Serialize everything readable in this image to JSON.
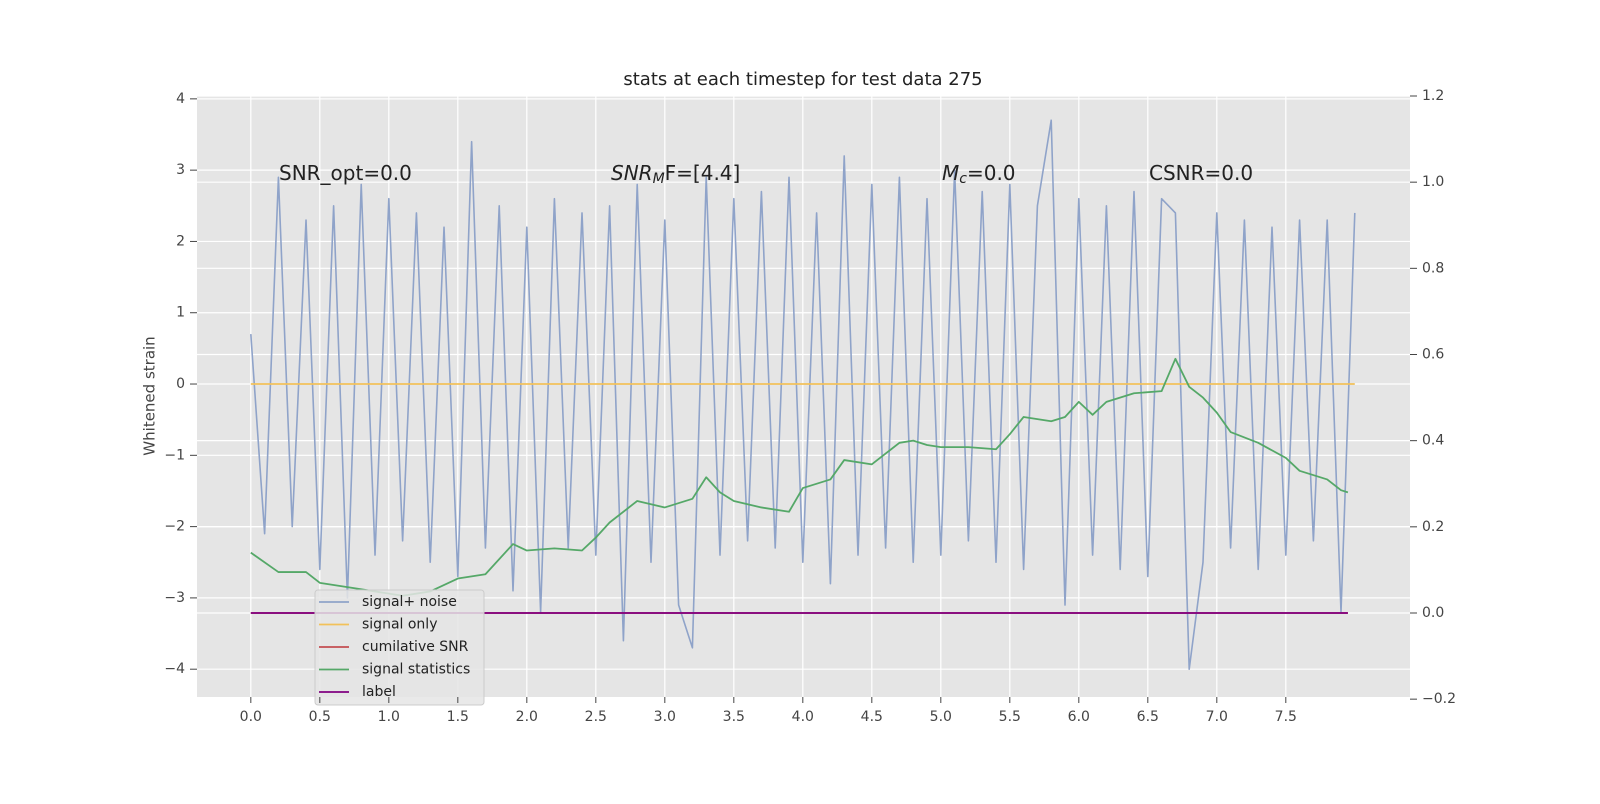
{
  "chart_data": {
    "type": "line",
    "title": "stats at each timestep for test data 275",
    "y_label": "Whitened strain",
    "annotations": [
      {
        "main": "SNR_opt=0.0"
      },
      {
        "main": "SNR",
        "sub": "M",
        "rest": "F=[4.4]"
      },
      {
        "main": "M",
        "sub": "c",
        "rest": "=0.0"
      },
      {
        "main": "CSNR=0.0"
      }
    ],
    "xlim": [
      -0.39,
      8.4
    ],
    "ylim": [
      -4.39,
      4.04
    ],
    "y2lim": [
      -0.195,
      1.2
    ],
    "xticks": [
      {
        "value": 0,
        "label": "0.0"
      },
      {
        "value": 0.5,
        "label": "0.5"
      },
      {
        "value": 1,
        "label": "1.0"
      },
      {
        "value": 1.5,
        "label": "1.5"
      },
      {
        "value": 2,
        "label": "2.0"
      },
      {
        "value": 2.5,
        "label": "2.5"
      },
      {
        "value": 3,
        "label": "3.0"
      },
      {
        "value": 3.5,
        "label": "3.5"
      },
      {
        "value": 4,
        "label": "4.0"
      },
      {
        "value": 4.5,
        "label": "4.5"
      },
      {
        "value": 5,
        "label": "5.0"
      },
      {
        "value": 5.5,
        "label": "5.5"
      },
      {
        "value": 6,
        "label": "6.0"
      },
      {
        "value": 6.5,
        "label": "6.5"
      },
      {
        "value": 7,
        "label": "7.0"
      },
      {
        "value": 7.5,
        "label": "7.5"
      }
    ],
    "yticks": [
      {
        "value": -4,
        "label": "−4"
      },
      {
        "value": -3,
        "label": "−3"
      },
      {
        "value": -2,
        "label": "−2"
      },
      {
        "value": -1,
        "label": "−1"
      },
      0,
      1,
      2,
      3,
      4
    ],
    "y2ticks": [
      {
        "value": -0.2,
        "label": "−0.2"
      },
      {
        "value": 0,
        "label": "0.0"
      },
      {
        "value": 0.2,
        "label": "0.2"
      },
      {
        "value": 0.4,
        "label": "0.4"
      },
      {
        "value": 0.6,
        "label": "0.6"
      },
      {
        "value": 0.8,
        "label": "0.8"
      },
      {
        "value": 1.0,
        "label": "1.0"
      },
      {
        "value": 1.2,
        "label": "1.2"
      }
    ],
    "grid": true,
    "legend": "lower left",
    "series": [
      {
        "name": "signal+ noise",
        "color": "#8fa3c9",
        "x": [
          0,
          0.1,
          0.2,
          0.3,
          0.4,
          0.5,
          0.6,
          0.7,
          0.8,
          0.9,
          1,
          1.1,
          1.2,
          1.3,
          1.4,
          1.5,
          1.6,
          1.7,
          1.8,
          1.9,
          2,
          2.1,
          2.2,
          2.3,
          2.4,
          2.5,
          2.6,
          2.7,
          2.8,
          2.9,
          3,
          3.1,
          3.2,
          3.3,
          3.4,
          3.5,
          3.6,
          3.7,
          3.8,
          3.9,
          4,
          4.1,
          4.2,
          4.3,
          4.4,
          4.5,
          4.6,
          4.7,
          4.8,
          4.9,
          5,
          5.1,
          5.2,
          5.3,
          5.4,
          5.5,
          5.6,
          5.7,
          5.8,
          5.9,
          6,
          6.1,
          6.2,
          6.3,
          6.4,
          6.5,
          6.6,
          6.7,
          6.8,
          6.9,
          7,
          7.1,
          7.2,
          7.3,
          7.4,
          7.5,
          7.6,
          7.7,
          7.8,
          7.9,
          8
        ],
        "values": [
          0.7,
          -2.1,
          2.9,
          -2.0,
          2.3,
          -2.6,
          2.5,
          -3.0,
          2.8,
          -2.4,
          2.6,
          -2.2,
          2.4,
          -2.5,
          2.2,
          -2.7,
          3.4,
          -2.3,
          2.5,
          -2.9,
          2.2,
          -3.2,
          2.6,
          -2.3,
          2.4,
          -2.4,
          2.5,
          -3.6,
          2.8,
          -2.5,
          2.3,
          -3.1,
          -3.7,
          2.9,
          -2.4,
          2.6,
          -2.2,
          2.7,
          -2.3,
          2.9,
          -2.5,
          2.4,
          -2.8,
          3.2,
          -2.4,
          2.8,
          -2.3,
          2.9,
          -2.5,
          2.6,
          -2.4,
          3.0,
          -2.2,
          2.7,
          -2.5,
          2.8,
          -2.6,
          2.5,
          3.7,
          -3.1,
          2.6,
          -2.4,
          2.5,
          -2.6,
          2.7,
          -2.7,
          2.6,
          2.4,
          -4.0,
          -2.5,
          2.4,
          -2.3,
          2.3,
          -2.6,
          2.2,
          -2.4,
          2.3,
          -2.2,
          2.3,
          -3.2,
          2.4
        ]
      },
      {
        "name": "signal only",
        "color": "#f2c15a",
        "x": [
          0,
          8
        ],
        "values": [
          0,
          0
        ]
      },
      {
        "name": "cumilative SNR",
        "color": "#c44e52",
        "axis": "y2",
        "x": [
          0,
          7.95
        ],
        "values": [
          0,
          0
        ]
      },
      {
        "name": "signal statistics",
        "color": "#55a868",
        "axis": "y2",
        "x": [
          0,
          0.2,
          0.4,
          0.5,
          0.7,
          0.9,
          1.1,
          1.3,
          1.5,
          1.7,
          1.9,
          2.0,
          2.2,
          2.4,
          2.5,
          2.6,
          2.8,
          3.0,
          3.2,
          3.3,
          3.4,
          3.5,
          3.7,
          3.9,
          4.0,
          4.2,
          4.3,
          4.5,
          4.7,
          4.8,
          4.9,
          5.0,
          5.2,
          5.4,
          5.5,
          5.6,
          5.8,
          5.9,
          6.0,
          6.1,
          6.2,
          6.4,
          6.6,
          6.7,
          6.8,
          6.9,
          7.0,
          7.1,
          7.3,
          7.5,
          7.6,
          7.8,
          7.9,
          7.95
        ],
        "values": [
          0.14,
          0.095,
          0.095,
          0.07,
          0.06,
          0.05,
          0.04,
          0.05,
          0.08,
          0.09,
          0.16,
          0.145,
          0.15,
          0.145,
          0.175,
          0.21,
          0.26,
          0.245,
          0.265,
          0.315,
          0.28,
          0.26,
          0.245,
          0.235,
          0.29,
          0.31,
          0.355,
          0.345,
          0.395,
          0.4,
          0.39,
          0.385,
          0.385,
          0.38,
          0.415,
          0.455,
          0.445,
          0.455,
          0.49,
          0.46,
          0.49,
          0.51,
          0.515,
          0.59,
          0.525,
          0.5,
          0.465,
          0.42,
          0.395,
          0.36,
          0.33,
          0.31,
          0.285,
          0.28
        ]
      },
      {
        "name": "label",
        "color": "#800080",
        "axis": "y2",
        "x": [
          0,
          7.95
        ],
        "values": [
          0,
          0
        ]
      }
    ]
  }
}
